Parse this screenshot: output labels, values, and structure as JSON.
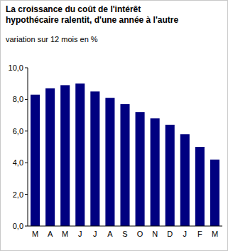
{
  "chart_data": {
    "type": "bar",
    "title": "La croissance du coût de l'intérêt hypothécaire ralentit, d'une année à l'autre",
    "subtitle": "variation sur 12 mois en %",
    "categories": [
      "M",
      "A",
      "M",
      "J",
      "J",
      "A",
      "S",
      "O",
      "N",
      "D",
      "J",
      "F",
      "M"
    ],
    "values": [
      8.3,
      8.7,
      8.9,
      9.0,
      8.5,
      8.1,
      7.7,
      7.2,
      6.8,
      6.4,
      5.8,
      5.0,
      4.2
    ],
    "color": "#000080",
    "ylim": [
      0,
      10
    ],
    "yticks": [
      {
        "value": 0,
        "label": "0,0"
      },
      {
        "value": 2,
        "label": "2,0"
      },
      {
        "value": 4,
        "label": "4,0"
      },
      {
        "value": 6,
        "label": "6,0"
      },
      {
        "value": 8,
        "label": "8,0"
      },
      {
        "value": 10,
        "label": "10,0"
      }
    ],
    "grid": false
  }
}
